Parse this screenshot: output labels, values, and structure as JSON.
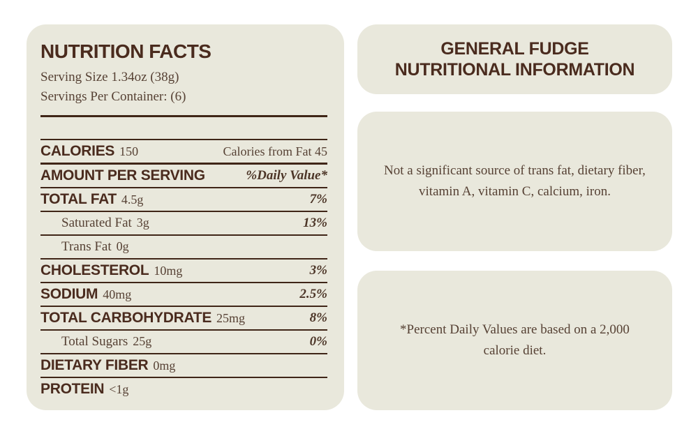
{
  "colors": {
    "page_bg": "#ffffff",
    "card_bg": "#e9e8dc",
    "heading": "#4a2b1e",
    "body_text": "#564134",
    "rule": "#3f2517"
  },
  "left_panel": {
    "title": "NUTRITION FACTS",
    "serving_size": "Serving Size 1.34oz (38g)",
    "servings_per_container": "Servings Per Container: (6)",
    "rows": [
      {
        "label": "CALORIES",
        "value": "150",
        "right": "Calories from Fat 45"
      },
      {
        "label": "AMOUNT PER SERVING",
        "value": "",
        "right": "%Daily Value*"
      },
      {
        "label": "TOTAL FAT",
        "value": "4.5g",
        "right": "7%"
      },
      {
        "label": "Saturated Fat",
        "value": "3g",
        "right": "13%"
      },
      {
        "label": "Trans Fat",
        "value": "0g",
        "right": ""
      },
      {
        "label": "CHOLESTEROL",
        "value": "10mg",
        "right": "3%"
      },
      {
        "label": "SODIUM",
        "value": "40mg",
        "right": "2.5%"
      },
      {
        "label": "TOTAL CARBOHYDRATE",
        "value": "25mg",
        "right": "8%"
      },
      {
        "label": "Total Sugars",
        "value": "25g",
        "right": "0%"
      },
      {
        "label": "DIETARY FIBER",
        "value": "0mg",
        "right": ""
      },
      {
        "label": "PROTEIN",
        "value": "<1g",
        "right": ""
      }
    ]
  },
  "right_panel": {
    "header": {
      "line1": "GENERAL FUDGE",
      "line2": "NUTRITIONAL INFORMATION"
    },
    "note1": {
      "line1": "Not a significant source of trans fat, dietary fiber,",
      "line2": "vitamin A, vitamin C, calcium, iron."
    },
    "note2": {
      "line1": "*Percent Daily Values are based on a 2,000",
      "line2": "calorie diet."
    }
  }
}
